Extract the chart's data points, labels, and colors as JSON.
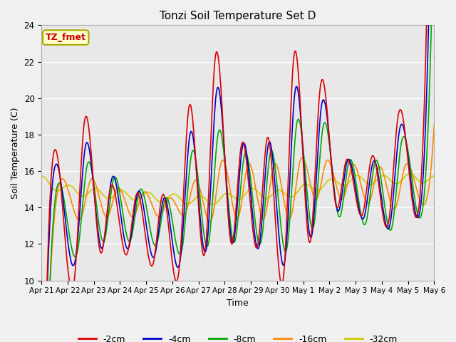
{
  "title": "Tonzi Soil Temperature Set D",
  "xlabel": "Time",
  "ylabel": "Soil Temperature (C)",
  "ylim": [
    10,
    24
  ],
  "yticks": [
    10,
    12,
    14,
    16,
    18,
    20,
    22,
    24
  ],
  "annotation_text": "TZ_fmet",
  "annotation_color": "#cc0000",
  "annotation_bg": "#ffffcc",
  "annotation_border": "#aaaa00",
  "line_colors": {
    "-2cm": "#dd0000",
    "-4cm": "#0000cc",
    "-8cm": "#00aa00",
    "-16cm": "#ff8800",
    "-32cm": "#cccc00"
  },
  "legend_labels": [
    "-2cm",
    "-4cm",
    "-8cm",
    "-16cm",
    "-32cm"
  ],
  "xtick_labels": [
    "Apr 21",
    "Apr 22",
    "Apr 23",
    "Apr 24",
    "Apr 25",
    "Apr 26",
    "Apr 27",
    "Apr 28",
    "Apr 29",
    "Apr 30",
    "May 1",
    "May 2",
    "May 3",
    "May 4",
    "May 5",
    "May 6"
  ],
  "background_color": "#e8e8e8",
  "figsize": [
    6.4,
    4.8
  ],
  "dpi": 100
}
